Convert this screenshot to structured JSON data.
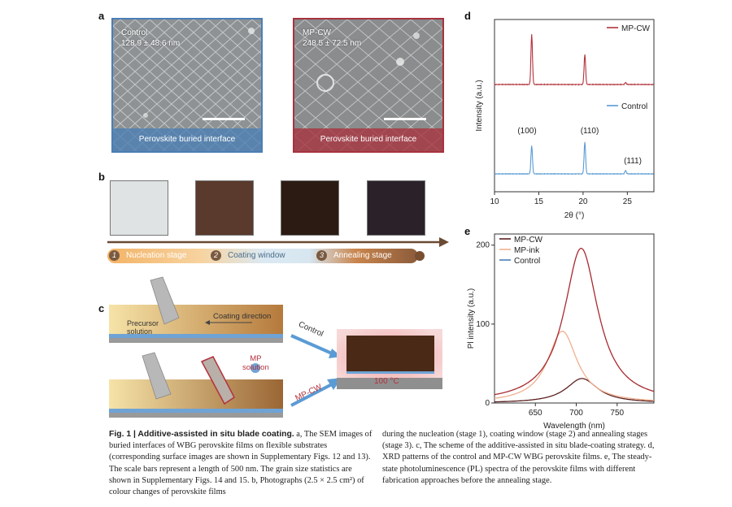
{
  "panel_labels": {
    "a": "a",
    "b": "b",
    "c": "c",
    "d": "d",
    "e": "e"
  },
  "panel_a": {
    "control": {
      "name": "Control",
      "size": "128.9 ± 48.6 nm",
      "band": "Perovskite buried interface",
      "color": "#4a7fb5"
    },
    "mpcw": {
      "name": "MP-CW",
      "size": "248.5 ± 72.5 nm",
      "band": "Perovskite buried interface",
      "color": "#a8323e"
    }
  },
  "panel_b": {
    "photos": [
      "#dfe3e4",
      "#5a3a2c",
      "#2c1b12",
      "#2b2229"
    ],
    "stages": [
      {
        "num": "1",
        "label": "Nucleation stage"
      },
      {
        "num": "2",
        "label": "Coating window"
      },
      {
        "num": "3",
        "label": "Annealing stage"
      }
    ]
  },
  "panel_c": {
    "precursor": "Precursor\nsolution",
    "coating_direction": "Coating direction",
    "mp_solution": "MP\nsolution",
    "control_label": "Control",
    "mpcw_label": "MP-CW",
    "temperature": "100 °C"
  },
  "chart_data": [
    {
      "type": "line",
      "panel": "d",
      "title": "",
      "xlabel": "2θ (°)",
      "ylabel": "Intensity (a.u.)",
      "xlim": [
        10,
        28
      ],
      "xticks": [
        "10",
        "15",
        "20",
        "25"
      ],
      "series": [
        {
          "name": "MP-CW",
          "color": "#b3323c",
          "peaks": [
            {
              "x": 14.2,
              "h": 1.0
            },
            {
              "x": 20.2,
              "h": 0.6
            },
            {
              "x": 24.8,
              "h": 0.04
            }
          ]
        },
        {
          "name": "Control",
          "color": "#5b9bd5",
          "peaks": [
            {
              "x": 14.2,
              "h": 0.6
            },
            {
              "x": 20.2,
              "h": 0.68
            },
            {
              "x": 24.8,
              "h": 0.07
            }
          ]
        }
      ],
      "annotations": [
        "(100)",
        "(110)",
        "(111)"
      ]
    },
    {
      "type": "line",
      "panel": "e",
      "title": "",
      "xlabel": "Wavelength (nm)",
      "ylabel": "Pl intensity (a.u.)",
      "xlim": [
        600,
        795
      ],
      "ylim": [
        0,
        210
      ],
      "xticks": [
        "650",
        "700",
        "750"
      ],
      "yticks": [
        "0",
        "100",
        "200"
      ],
      "series": [
        {
          "name": "MP-CW",
          "color": "#5c2020",
          "peak_x": 707,
          "peak_y": 31,
          "width": 28
        },
        {
          "name": "MP-ink",
          "color": "#f0b090",
          "peak_x": 683,
          "peak_y": 91,
          "width": 26
        },
        {
          "name": "Control",
          "color": "#a82a30",
          "peak_x": 706,
          "peak_y": 196,
          "width": 30
        }
      ]
    }
  ],
  "caption": {
    "fig": "Fig. 1 | Additive-assisted in situ blade coating.",
    "left": " a, The SEM images of buried interfaces of WBG perovskite films on flexible substrates (corresponding surface images are shown in Supplementary Figs. 12 and 13). The scale bars represent a length of 500 nm. The grain size statistics are shown in Supplementary Figs. 14 and 15. b, Photographs (2.5 × 2.5 cm²) of colour changes of perovskite films",
    "right": "during the nucleation (stage 1), coating window (stage 2) and annealing stages (stage 3). c, The scheme of the additive-assisted in situ blade-coating strategy. d, XRD patterns of the control and MP-CW WBG perovskite films. e, The steady-state photoluminescence (PL) spectra of the perovskite films with different fabrication approaches before the annealing stage."
  }
}
